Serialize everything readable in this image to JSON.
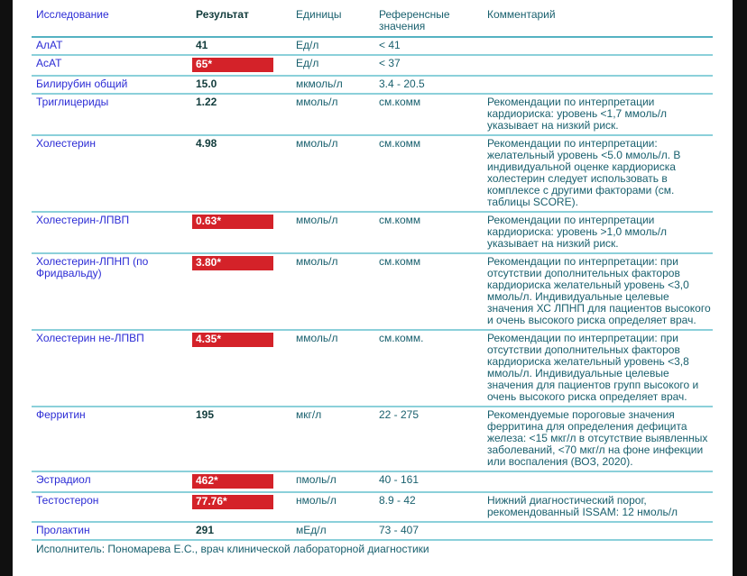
{
  "page": {
    "footer": "Исполнитель: Пономарева Е.С., врач клинической лабораторной диагностики"
  },
  "colors": {
    "flag_red": "#d42229",
    "flag_text": "#ffffff",
    "test_name_blue": "#2b2bd5",
    "header_teal": "#19606e",
    "row_line_teal": "#8bd0da",
    "header_line_teal": "#55b2c2",
    "result_dark": "#123c3c",
    "edge_black": "#101010"
  },
  "table": {
    "headers": {
      "name": "Исследование",
      "result": "Результат",
      "units": "Единицы",
      "reference": "Референсные значения",
      "comment": "Комментарий"
    },
    "rows": [
      {
        "name": "АлАТ",
        "result": "41",
        "flagged": false,
        "units": "Ед/л",
        "reference": "< 41",
        "comment": ""
      },
      {
        "name": "АсАТ",
        "result": "65*",
        "flagged": true,
        "units": "Ед/л",
        "reference": "< 37",
        "comment": ""
      },
      {
        "name": "Билирубин общий",
        "result": "15.0",
        "flagged": false,
        "units": "мкмоль/л",
        "reference": "3.4 - 20.5",
        "comment": ""
      },
      {
        "name": "Триглицериды",
        "result": "1.22",
        "flagged": false,
        "units": "ммоль/л",
        "reference": "см.комм",
        "comment": "Рекомендации по интерпретации кардиориска: уровень <1,7 ммоль/л указывает на низкий риск."
      },
      {
        "name": "Холестерин",
        "result": "4.98",
        "flagged": false,
        "units": "ммоль/л",
        "reference": "см.комм",
        "comment": "Рекомендации по интерпретации: желательный уровень <5.0 ммоль/л. В индивидуальной оценке кардиориска холестерин следует использовать в комплексе с другими факторами (см. таблицы SCORE)."
      },
      {
        "name": "Холестерин-ЛПВП",
        "result": "0.63*",
        "flagged": true,
        "units": "ммоль/л",
        "reference": "см.комм",
        "comment": "Рекомендации по интерпретации кардиориска: уровень >1,0 ммоль/л указывает на низкий риск."
      },
      {
        "name": "Холестерин-ЛПНП (по Фридвальду)",
        "result": "3.80*",
        "flagged": true,
        "units": "ммоль/л",
        "reference": "см.комм",
        "comment": "Рекомендации по интерпретации: при отсутствии дополнительных факторов кардиориска желательный уровень <3,0 ммоль/л. Индивидуальные целевые значения ХС ЛПНП для пациентов высокого и очень высокого риска определяет врач."
      },
      {
        "name": "Холестерин не-ЛПВП",
        "result": "4.35*",
        "flagged": true,
        "units": "ммоль/л",
        "reference": "см.комм.",
        "comment": "Рекомендации по интерпретации: при отсутствии дополнительных факторов кардиориска желательный уровень <3,8 ммоль/л. Индивидуальные целевые значения для пациентов групп высокого и очень высокого риска определяет врач."
      },
      {
        "name": "Ферритин",
        "result": "195",
        "flagged": false,
        "units": "мкг/л",
        "reference": "22 - 275",
        "comment": "Рекомендуемые пороговые значения ферритина для определения дефицита железа: <15 мкг/л в отсутствие выявленных заболеваний, <70 мкг/л на фоне инфекции или воспаления (ВОЗ, 2020)."
      },
      {
        "name": "Эстрадиол",
        "result": "462*",
        "flagged": true,
        "units": "пмоль/л",
        "reference": "40 - 161",
        "comment": ""
      },
      {
        "name": "Тестостерон",
        "result": "77.76*",
        "flagged": true,
        "units": "нмоль/л",
        "reference": "8.9 - 42",
        "comment": "Нижний диагностический порог, рекомендованный ISSAM: 12 нмоль/л"
      },
      {
        "name": "Пролактин",
        "result": "291",
        "flagged": false,
        "units": "мЕд/л",
        "reference": "73 - 407",
        "comment": ""
      }
    ]
  }
}
